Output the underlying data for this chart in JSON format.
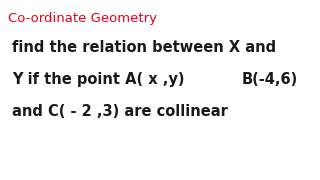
{
  "title": "Co-ordinate Geometry",
  "title_color": "#e8001c",
  "title_fontsize": 9.5,
  "line1": "find the relation between X and",
  "line2_part1": "Y if the point A( x ,y) ",
  "line2_bold": "B(-4,6)",
  "line3": "and C( - 2 ,3) are collinear",
  "body_fontsize": 10.5,
  "bold_fontsize": 10.5,
  "background_color": "#ffffff",
  "text_color": "#1a1a1a"
}
